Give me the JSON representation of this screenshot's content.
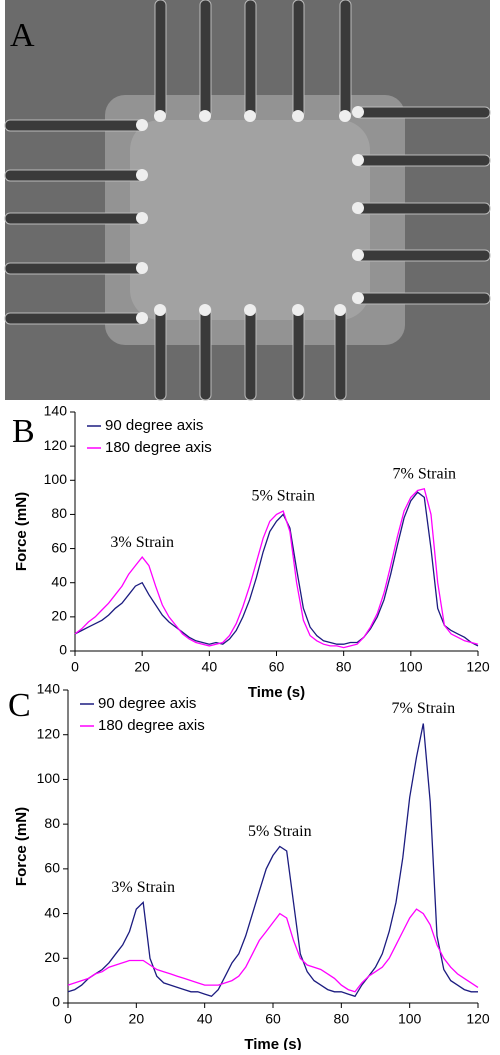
{
  "panel_labels": [
    "A",
    "B",
    "C"
  ],
  "chart_data": [
    {
      "type": "line",
      "xlabel": "Time (s)",
      "ylabel": "Force (mN)",
      "x": [
        0,
        2,
        4,
        6,
        8,
        10,
        12,
        14,
        16,
        18,
        20,
        22,
        24,
        26,
        28,
        30,
        32,
        34,
        36,
        38,
        40,
        42,
        44,
        46,
        48,
        50,
        52,
        54,
        56,
        58,
        60,
        62,
        64,
        66,
        68,
        70,
        72,
        74,
        76,
        78,
        80,
        82,
        84,
        86,
        88,
        90,
        92,
        94,
        96,
        98,
        100,
        102,
        104,
        106,
        108,
        110,
        112,
        114,
        116,
        118,
        120
      ],
      "series": [
        {
          "name": "90 degree axis",
          "color": "#1c1c80",
          "values": [
            10,
            12,
            14,
            16,
            18,
            21,
            25,
            28,
            33,
            38,
            40,
            33,
            27,
            21,
            17,
            14,
            11,
            8,
            6,
            5,
            4,
            5,
            4,
            7,
            12,
            20,
            30,
            43,
            58,
            70,
            76,
            80,
            72,
            48,
            25,
            14,
            9,
            6,
            5,
            4,
            4,
            5,
            5,
            8,
            13,
            20,
            30,
            45,
            62,
            78,
            88,
            93,
            90,
            60,
            25,
            15,
            12,
            10,
            8,
            5,
            3
          ]
        },
        {
          "name": "180 degree axis",
          "color": "#ff00ff",
          "values": [
            10,
            13,
            17,
            20,
            24,
            28,
            33,
            38,
            45,
            50,
            55,
            50,
            38,
            27,
            20,
            15,
            10,
            7,
            5,
            4,
            3,
            4,
            5,
            9,
            16,
            26,
            38,
            52,
            66,
            76,
            80,
            82,
            70,
            40,
            18,
            9,
            6,
            4,
            3,
            3,
            2,
            3,
            4,
            8,
            14,
            22,
            34,
            50,
            67,
            82,
            90,
            94,
            95,
            80,
            40,
            15,
            10,
            8,
            6,
            5,
            4
          ]
        }
      ],
      "annotations": [
        "3% Strain",
        "5% Strain",
        "7% Strain"
      ],
      "xlim": [
        0,
        120
      ],
      "ylim": [
        0,
        140
      ],
      "xticks": [
        0,
        20,
        40,
        60,
        80,
        100,
        120
      ],
      "yticks": [
        0,
        20,
        40,
        60,
        80,
        100,
        120,
        140
      ],
      "legend": "upper left",
      "grid": false
    },
    {
      "type": "line",
      "xlabel": "Time (s)",
      "ylabel": "Force (mN)",
      "x": [
        0,
        2,
        4,
        6,
        8,
        10,
        12,
        14,
        16,
        18,
        20,
        22,
        24,
        26,
        28,
        30,
        32,
        34,
        36,
        38,
        40,
        42,
        44,
        46,
        48,
        50,
        52,
        54,
        56,
        58,
        60,
        62,
        64,
        66,
        68,
        70,
        72,
        74,
        76,
        78,
        80,
        82,
        84,
        86,
        88,
        90,
        92,
        94,
        96,
        98,
        100,
        102,
        104,
        106,
        108,
        110,
        112,
        114,
        116,
        118,
        120
      ],
      "series": [
        {
          "name": "90 degree axis",
          "color": "#1c1c80",
          "values": [
            5,
            6,
            8,
            11,
            13,
            15,
            18,
            22,
            26,
            32,
            42,
            45,
            20,
            12,
            9,
            8,
            7,
            6,
            5,
            5,
            4,
            3,
            6,
            12,
            18,
            22,
            30,
            40,
            50,
            60,
            66,
            70,
            68,
            45,
            22,
            14,
            10,
            8,
            6,
            5,
            5,
            4,
            3,
            8,
            12,
            16,
            22,
            32,
            45,
            65,
            92,
            110,
            125,
            90,
            30,
            15,
            10,
            8,
            6,
            5,
            5
          ]
        },
        {
          "name": "180 degree axis",
          "color": "#ff00ff",
          "values": [
            8,
            9,
            10,
            11,
            13,
            14,
            16,
            17,
            18,
            19,
            19,
            19,
            17,
            15,
            14,
            13,
            12,
            11,
            10,
            9,
            8,
            8,
            8,
            9,
            10,
            12,
            16,
            22,
            28,
            32,
            36,
            40,
            38,
            28,
            20,
            17,
            16,
            15,
            13,
            11,
            8,
            6,
            5,
            9,
            12,
            14,
            16,
            20,
            26,
            32,
            38,
            42,
            40,
            35,
            26,
            20,
            16,
            13,
            11,
            9,
            7
          ]
        }
      ],
      "annotations": [
        "3% Strain",
        "5% Strain",
        "7% Strain"
      ],
      "xlim": [
        0,
        120
      ],
      "ylim": [
        0,
        140
      ],
      "xticks": [
        0,
        20,
        40,
        60,
        80,
        100,
        120
      ],
      "yticks": [
        0,
        20,
        40,
        60,
        80,
        100,
        120,
        140
      ],
      "legend": "upper left",
      "grid": false
    }
  ]
}
